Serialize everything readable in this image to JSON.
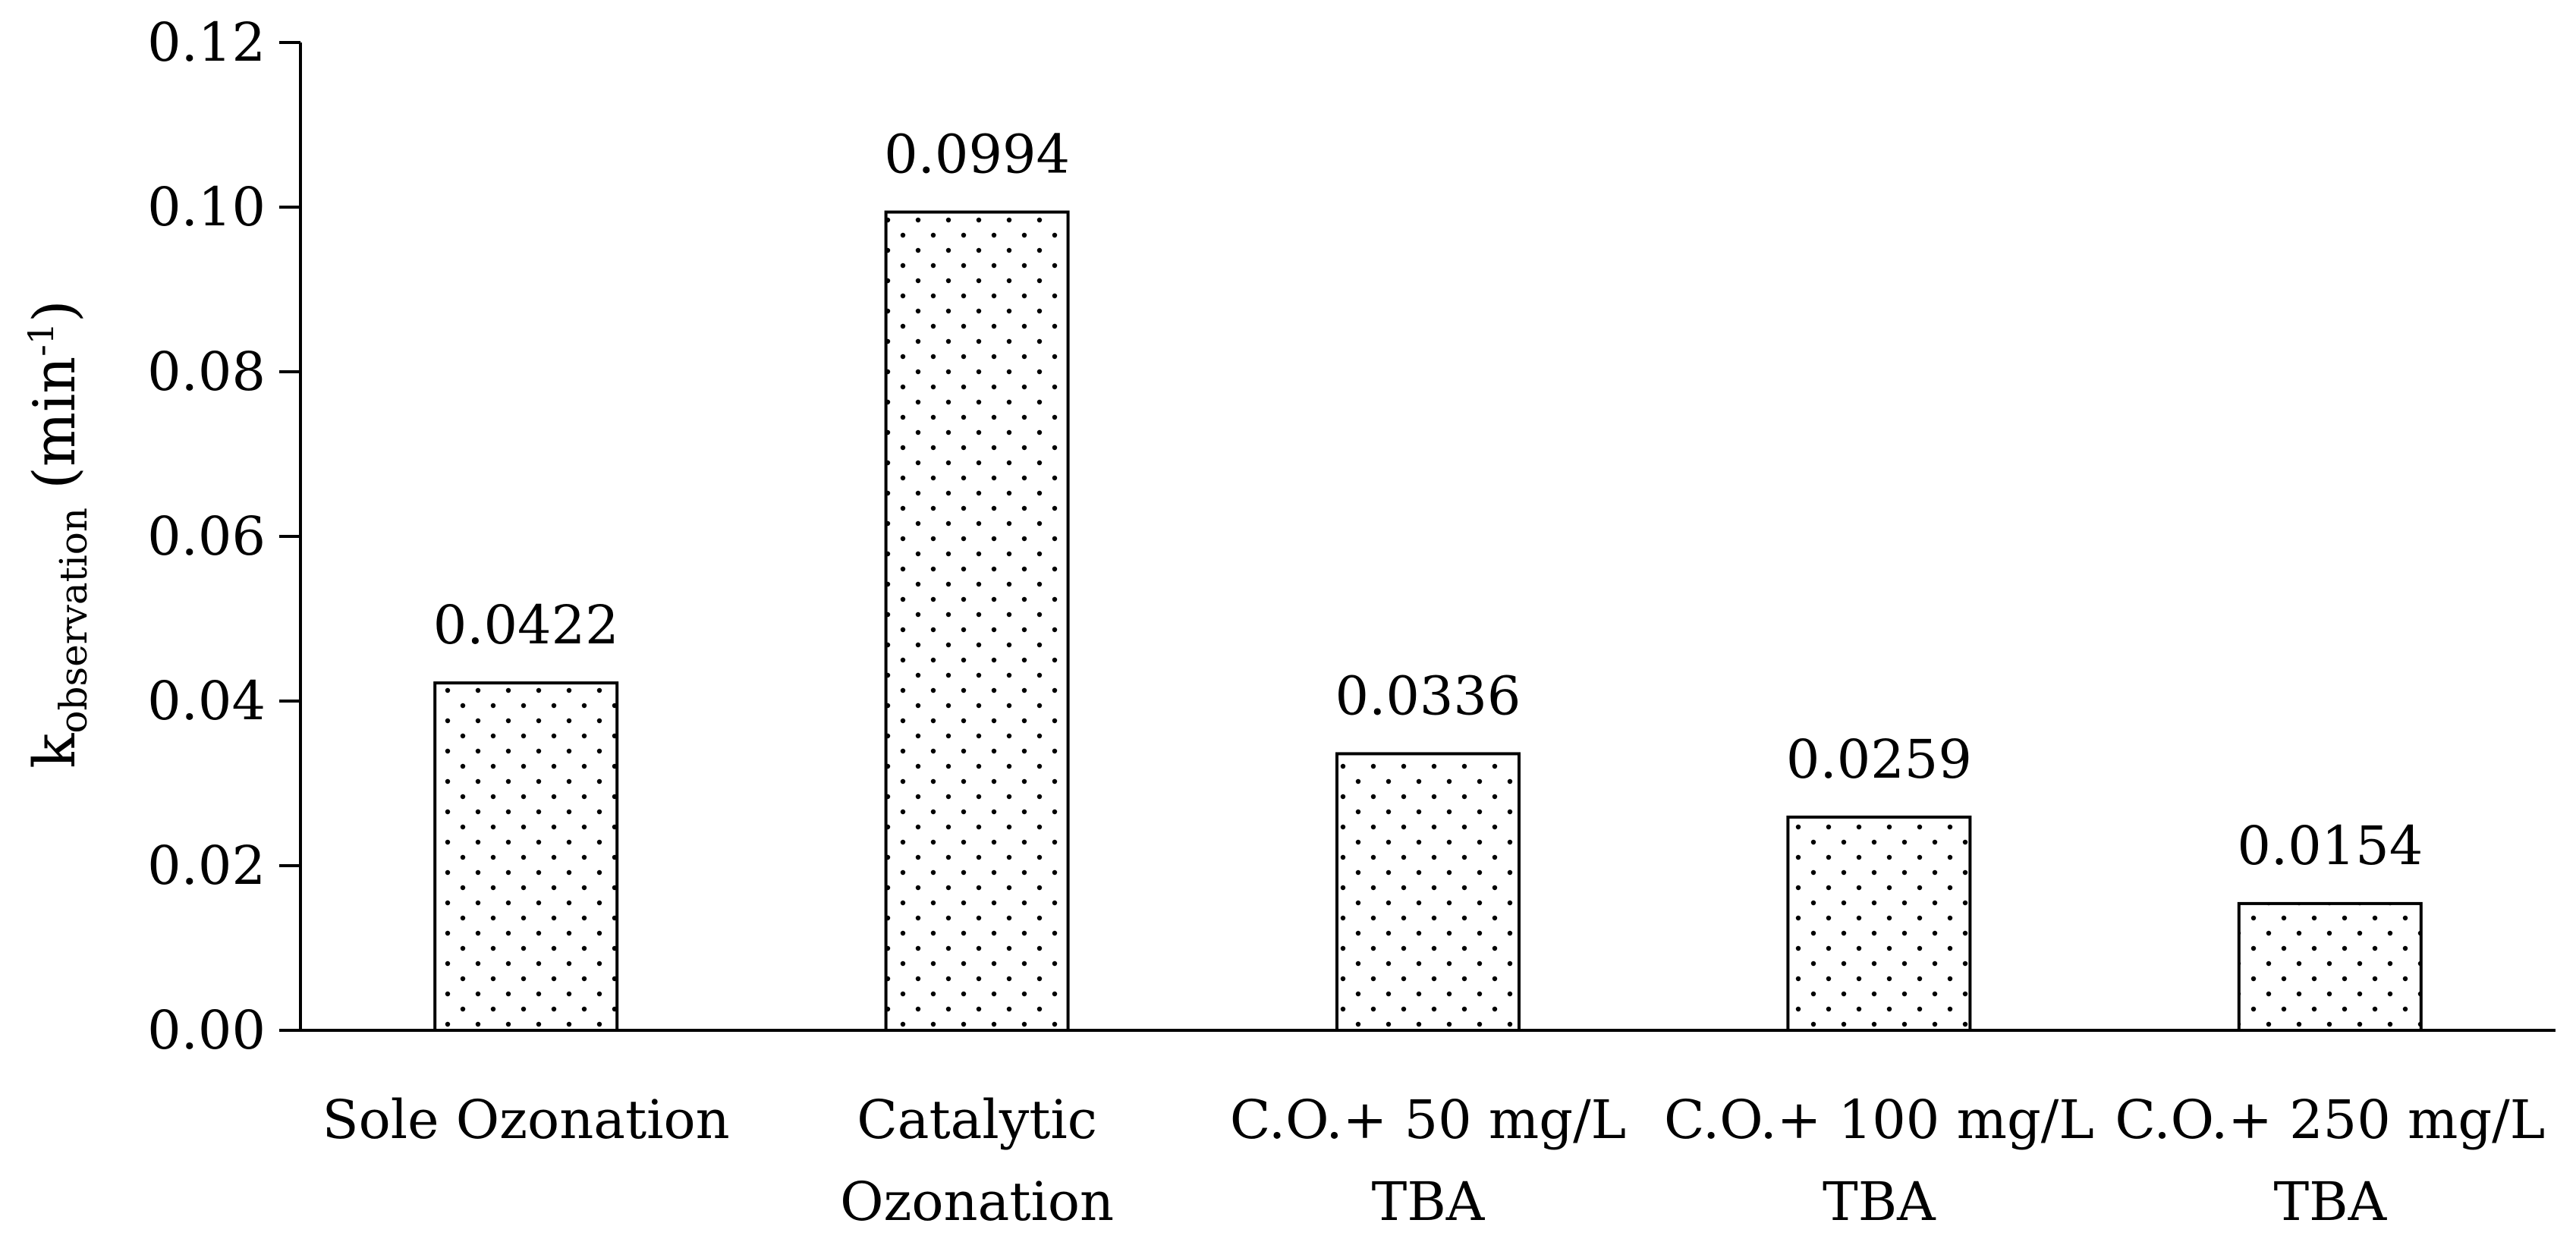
{
  "chart_data": {
    "type": "bar",
    "title": "",
    "xlabel": "",
    "ylabel": {
      "base": "k",
      "subscript": "observation",
      "unit_open": " (min",
      "unit_superscript": "-1",
      "unit_close": ")"
    },
    "ylim": [
      0,
      0.12
    ],
    "yticks": [
      "0.00",
      "0.02",
      "0.04",
      "0.06",
      "0.08",
      "0.10",
      "0.12"
    ],
    "ytick_values": [
      0,
      0.02,
      0.04,
      0.06,
      0.08,
      0.1,
      0.12
    ],
    "categories": [
      [
        "Sole Ozonation"
      ],
      [
        "Catalytic",
        "Ozonation"
      ],
      [
        "C.O.+ 50 mg/L",
        "TBA"
      ],
      [
        "C.O.+ 100 mg/L",
        "TBA"
      ],
      [
        "C.O.+ 250 mg/L",
        "TBA"
      ]
    ],
    "values": [
      0.0422,
      0.0994,
      0.0336,
      0.0259,
      0.0154
    ],
    "value_labels": [
      "0.0422",
      "0.0994",
      "0.0336",
      "0.0259",
      "0.0154"
    ],
    "bar_fill": "dotted",
    "colors": {
      "bar_edge": "#000000",
      "bar_fill": "#ffffff",
      "dot": "#000000",
      "axis": "#000000"
    }
  }
}
